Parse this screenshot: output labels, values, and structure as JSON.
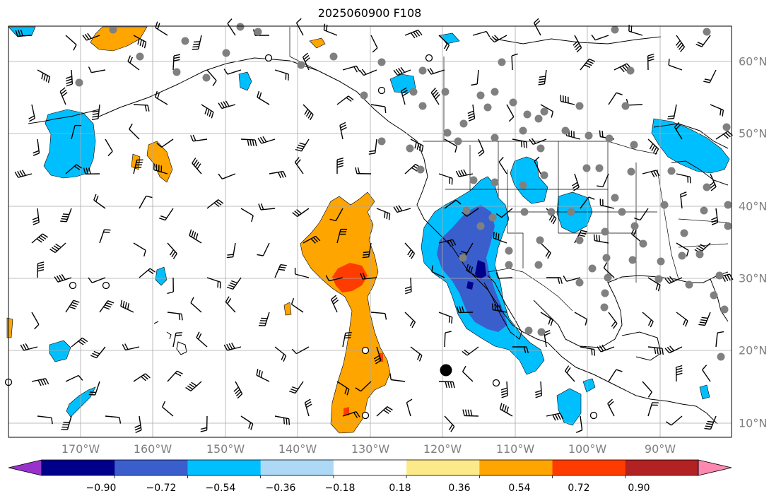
{
  "title": "2025060900 F108",
  "map": {
    "lon_labels": [
      "170°W",
      "160°W",
      "150°W",
      "140°W",
      "130°W",
      "120°W",
      "110°W",
      "100°W",
      "90°W"
    ],
    "lat_labels": [
      "60°N",
      "50°N",
      "40°N",
      "30°N",
      "20°N",
      "10°N"
    ],
    "grid": true,
    "extent": {
      "lon_min": -180,
      "lon_max": -80,
      "lat_min": 8,
      "lat_max": 65
    }
  },
  "colorbar": {
    "tick_labels": [
      "−0.90",
      "−0.72",
      "−0.54",
      "−0.36",
      "−0.18",
      "0.18",
      "0.36",
      "0.54",
      "0.72",
      "0.90"
    ],
    "colors": [
      "#9932cc",
      "#00008b",
      "#3a5fcd",
      "#00bfff",
      "#add8f6",
      "#ffffff",
      "#fce98a",
      "#ffa500",
      "#ff3c00",
      "#b22222",
      "#ff88b0"
    ]
  },
  "colors": {
    "orange": "#ffa500",
    "red": "#ff3c00",
    "blue": "#00bfff",
    "mid_blue": "#3a5fcd",
    "navy": "#00008b",
    "station_gray": "#808080"
  }
}
